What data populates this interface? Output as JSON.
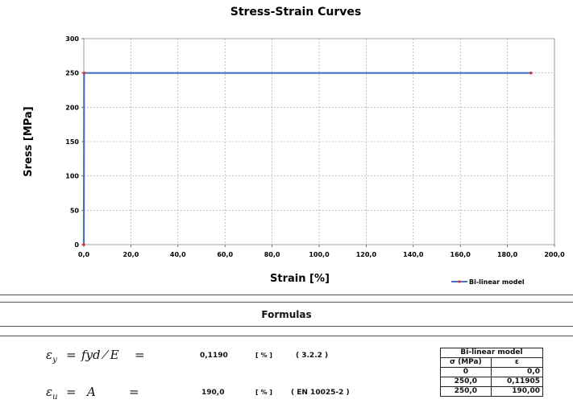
{
  "chart_data": {
    "type": "line",
    "title": "Stress-Strain Curves",
    "xlabel": "Strain [%]",
    "ylabel": "Sress [MPa]",
    "xlim": [
      0,
      200
    ],
    "ylim": [
      0,
      300
    ],
    "x_ticks": [
      "0,0",
      "20,0",
      "40,0",
      "60,0",
      "80,0",
      "100,0",
      "120,0",
      "140,0",
      "160,0",
      "180,0",
      "200,0"
    ],
    "y_ticks": [
      "0",
      "50",
      "100",
      "150",
      "200",
      "250",
      "300"
    ],
    "grid": true,
    "legend_position": "bottom-right",
    "series": [
      {
        "name": "Bi-linear model",
        "color": "#4472c4",
        "marker_color": "#e03030",
        "points": [
          [
            0,
            0
          ],
          [
            0.11905,
            250
          ],
          [
            190,
            250
          ]
        ]
      }
    ]
  },
  "formulas": {
    "title": "Formulas",
    "rows": [
      {
        "lhs": "ε",
        "sub": "y",
        "rhs": "fyd ⁄ E",
        "eq": "=",
        "value": "0,1190",
        "unit": "[ % ]",
        "ref": "( 3.2.2 )"
      },
      {
        "lhs": "ε",
        "sub": "u",
        "rhs": "A",
        "eq": "=",
        "value": "190,0",
        "unit": "[ % ]",
        "ref": "( EN 10025-2 )"
      }
    ]
  },
  "bilinear_table": {
    "title": "Bi-linear model",
    "headers": [
      "σ (MPa)",
      "ε"
    ],
    "rows": [
      [
        "0",
        "0,0"
      ],
      [
        "250,0",
        "0,11905"
      ],
      [
        "250,0",
        "190,00"
      ]
    ]
  }
}
